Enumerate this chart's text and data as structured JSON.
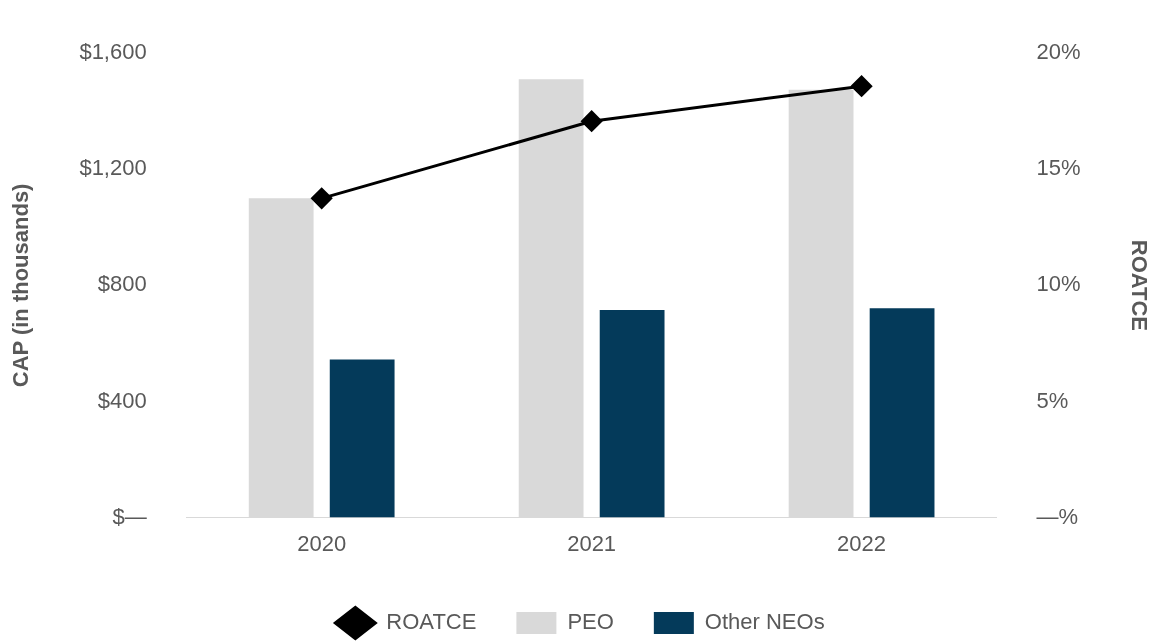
{
  "chart_data": {
    "type": "bar",
    "categories": [
      "2020",
      "2021",
      "2022"
    ],
    "series": [
      {
        "name": "PEO",
        "color": "#d9d9d9",
        "values": [
          1100,
          1510,
          1474
        ]
      },
      {
        "name": "Other NEOs",
        "color": "#043a5a",
        "values": [
          545,
          715,
          721
        ]
      },
      {
        "name": "ROATCE",
        "type": "line",
        "axis": "y2",
        "color": "#000000",
        "marker": "diamond",
        "values": [
          13.75,
          17.07,
          18.58
        ]
      }
    ],
    "ylabel": "CAP (in thousands)",
    "y2label": "ROATCE",
    "ylim": [
      0,
      1600
    ],
    "yticks": [
      {
        "value": 0,
        "label": "$—"
      },
      {
        "value": 400,
        "label": "$400"
      },
      {
        "value": 800,
        "label": "$800"
      },
      {
        "value": 1200,
        "label": "$1,200"
      },
      {
        "value": 1600,
        "label": "$1,600"
      }
    ],
    "y2lim": [
      0,
      20
    ],
    "y2ticks": [
      {
        "value": 0,
        "label": "—%"
      },
      {
        "value": 5,
        "label": "5%"
      },
      {
        "value": 10,
        "label": "10%"
      },
      {
        "value": 15,
        "label": "15%"
      },
      {
        "value": 20,
        "label": "20%"
      }
    ],
    "legend": "bottom"
  }
}
